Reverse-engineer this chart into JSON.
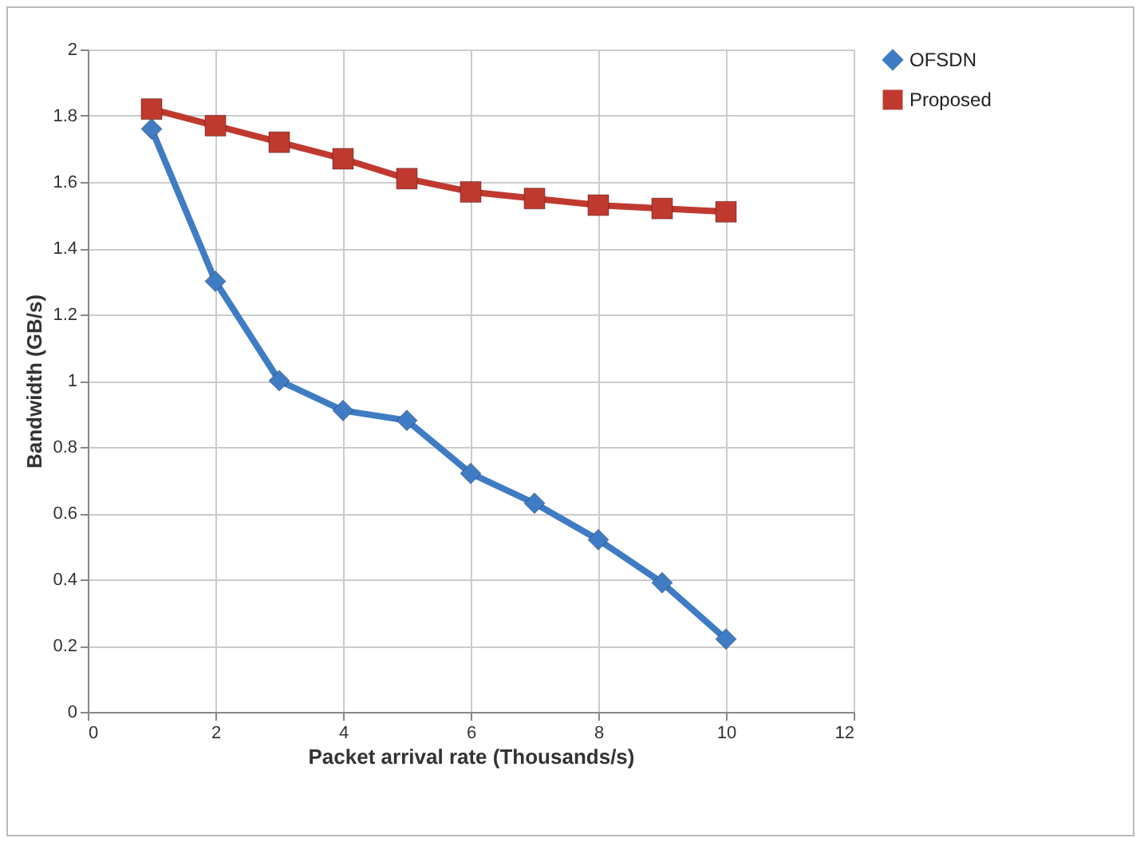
{
  "chart_data": {
    "type": "line",
    "xlabel": "Packet arrival rate (Thousands/s)",
    "ylabel": "Bandwidth (GB/s)",
    "x": [
      1,
      2,
      3,
      4,
      5,
      6,
      7,
      8,
      9,
      10
    ],
    "series": [
      {
        "name": "OFSDN",
        "color": "#3f7cc4",
        "marker": "diamond",
        "values": [
          1.76,
          1.3,
          1.0,
          0.91,
          0.88,
          0.72,
          0.63,
          0.52,
          0.39,
          0.22
        ]
      },
      {
        "name": "Proposed",
        "color": "#c0392f",
        "marker": "square",
        "values": [
          1.82,
          1.77,
          1.72,
          1.67,
          1.61,
          1.57,
          1.55,
          1.53,
          1.52,
          1.51
        ]
      }
    ],
    "xlim": [
      0,
      12
    ],
    "xticks": [
      0,
      2,
      4,
      6,
      8,
      10,
      12
    ],
    "ylim": [
      0,
      2
    ],
    "yticks": [
      0,
      0.2,
      0.4,
      0.6,
      0.8,
      1,
      1.2,
      1.4,
      1.6,
      1.8,
      2
    ],
    "grid": true,
    "legend": "right",
    "line_style": "solid"
  }
}
